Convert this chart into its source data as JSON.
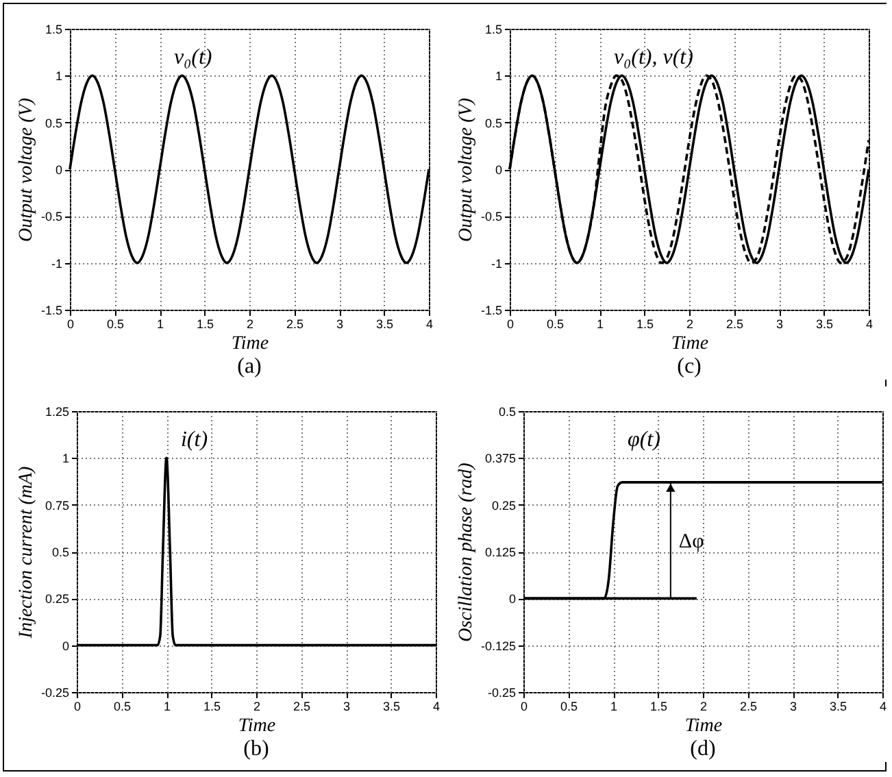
{
  "chart_data": [
    {
      "type": "line",
      "title": "(a)",
      "xlabel": "Time",
      "ylabel": "Output voltage (V)",
      "annotations": [
        "v₀(t)"
      ],
      "grid": true,
      "xlim": [
        0,
        4
      ],
      "xticks": [
        0,
        0.5,
        1,
        1.5,
        2,
        2.5,
        3,
        3.5,
        4
      ],
      "ylim": [
        -1.5,
        1.5
      ],
      "yticks": [
        -1.5,
        -1,
        -0.5,
        0,
        0.5,
        1,
        1.5
      ],
      "x": [
        0,
        0.0625,
        0.125,
        0.1875,
        0.25,
        0.3125,
        0.375,
        0.4375,
        0.5,
        0.5625,
        0.625,
        0.6875,
        0.75,
        0.8125,
        0.875,
        0.9375,
        1,
        1.0625,
        1.125,
        1.1875,
        1.25,
        1.3125,
        1.375,
        1.4375,
        1.5,
        1.5625,
        1.625,
        1.6875,
        1.75,
        1.8125,
        1.875,
        1.9375,
        2,
        2.0625,
        2.125,
        2.1875,
        2.25,
        2.3125,
        2.375,
        2.4375,
        2.5,
        2.5625,
        2.625,
        2.6875,
        2.75,
        2.8125,
        2.875,
        2.9375,
        3,
        3.0625,
        3.125,
        3.1875,
        3.25,
        3.3125,
        3.375,
        3.4375,
        3.5,
        3.5625,
        3.625,
        3.6875,
        3.75,
        3.8125,
        3.875,
        3.9375,
        4
      ],
      "series": [
        {
          "color": "#000000",
          "line_style": "solid",
          "values": [
            0,
            0.38,
            0.71,
            0.92,
            1,
            0.92,
            0.71,
            0.38,
            0,
            -0.38,
            -0.71,
            -0.92,
            -1,
            -0.92,
            -0.71,
            -0.38,
            0,
            0.38,
            0.71,
            0.92,
            1,
            0.92,
            0.71,
            0.38,
            0,
            -0.38,
            -0.71,
            -0.92,
            -1,
            -0.92,
            -0.71,
            -0.38,
            0,
            0.38,
            0.71,
            0.92,
            1,
            0.92,
            0.71,
            0.38,
            0,
            -0.38,
            -0.71,
            -0.92,
            -1,
            -0.92,
            -0.71,
            -0.38,
            0,
            0.38,
            0.71,
            0.92,
            1,
            0.92,
            0.71,
            0.38,
            0,
            -0.38,
            -0.71,
            -0.92,
            -1,
            -0.92,
            -0.71,
            -0.38,
            0
          ]
        }
      ]
    },
    {
      "type": "line",
      "title": "(c)",
      "xlabel": "Time",
      "ylabel": "Output voltage (V)",
      "annotations": [
        "v₀(t), v(t)"
      ],
      "grid": true,
      "xlim": [
        0,
        4
      ],
      "xticks": [
        0,
        0.5,
        1,
        1.5,
        2,
        2.5,
        3,
        3.5,
        4
      ],
      "ylim": [
        -1.5,
        1.5
      ],
      "yticks": [
        -1.5,
        -1,
        -0.5,
        0,
        0.5,
        1,
        1.5
      ],
      "x": [
        0,
        0.0625,
        0.125,
        0.1875,
        0.25,
        0.3125,
        0.375,
        0.4375,
        0.5,
        0.5625,
        0.625,
        0.6875,
        0.75,
        0.8125,
        0.875,
        0.9375,
        1,
        1.0625,
        1.125,
        1.1875,
        1.25,
        1.3125,
        1.375,
        1.4375,
        1.5,
        1.5625,
        1.625,
        1.6875,
        1.75,
        1.8125,
        1.875,
        1.9375,
        2,
        2.0625,
        2.125,
        2.1875,
        2.25,
        2.3125,
        2.375,
        2.4375,
        2.5,
        2.5625,
        2.625,
        2.6875,
        2.75,
        2.8125,
        2.875,
        2.9375,
        3,
        3.0625,
        3.125,
        3.1875,
        3.25,
        3.3125,
        3.375,
        3.4375,
        3.5,
        3.5625,
        3.625,
        3.6875,
        3.75,
        3.8125,
        3.875,
        3.9375,
        4
      ],
      "series": [
        {
          "color": "#000000",
          "line_style": "solid",
          "values": [
            0,
            0.38,
            0.71,
            0.92,
            1,
            0.92,
            0.71,
            0.38,
            0,
            -0.38,
            -0.71,
            -0.92,
            -1,
            -0.92,
            -0.71,
            -0.38,
            0,
            0.38,
            0.71,
            0.92,
            1,
            0.92,
            0.71,
            0.38,
            0,
            -0.38,
            -0.71,
            -0.92,
            -1,
            -0.92,
            -0.71,
            -0.38,
            0,
            0.38,
            0.71,
            0.92,
            1,
            0.92,
            0.71,
            0.38,
            0,
            -0.38,
            -0.71,
            -0.92,
            -1,
            -0.92,
            -0.71,
            -0.38,
            0,
            0.38,
            0.71,
            0.92,
            1,
            0.92,
            0.71,
            0.38,
            0,
            -0.38,
            -0.71,
            -0.92,
            -1,
            -0.92,
            -0.71,
            -0.38,
            0
          ]
        },
        {
          "color": "#000000",
          "line_style": "dashed",
          "values": [
            0,
            0.38,
            0.71,
            0.92,
            1,
            0.92,
            0.71,
            0.38,
            0,
            -0.38,
            -0.71,
            -0.92,
            -1,
            -0.92,
            -0.71,
            -0.38,
            0.15,
            0.65,
            0.89,
            1,
            0.95,
            0.76,
            0.45,
            0.08,
            -0.31,
            -0.65,
            -0.89,
            -1,
            -0.95,
            -0.76,
            -0.45,
            -0.08,
            0.31,
            0.65,
            0.89,
            1,
            0.95,
            0.76,
            0.45,
            0.08,
            -0.31,
            -0.65,
            -0.89,
            -1,
            -0.95,
            -0.76,
            -0.45,
            -0.08,
            0.31,
            0.65,
            0.89,
            1,
            0.95,
            0.76,
            0.45,
            0.08,
            -0.31,
            -0.65,
            -0.89,
            -1,
            -0.95,
            -0.76,
            -0.45,
            -0.08,
            0.31
          ]
        }
      ]
    },
    {
      "type": "line",
      "title": "(b)",
      "xlabel": "Time",
      "ylabel": "Injection current (mA)",
      "annotations": [
        "i(t)"
      ],
      "grid": true,
      "xlim": [
        0,
        4
      ],
      "xticks": [
        0,
        0.5,
        1,
        1.5,
        2,
        2.5,
        3,
        3.5,
        4
      ],
      "ylim": [
        -0.25,
        1.25
      ],
      "yticks": [
        -0.25,
        0,
        0.25,
        0.5,
        0.75,
        1,
        1.25
      ],
      "x": [
        0,
        0.9,
        0.93,
        0.96,
        1,
        1.04,
        1.07,
        1.1,
        4
      ],
      "series": [
        {
          "color": "#000000",
          "line_style": "solid",
          "values": [
            0,
            0,
            0.05,
            0.5,
            1,
            0.5,
            0.05,
            0,
            0
          ]
        }
      ]
    },
    {
      "type": "line",
      "title": "(d)",
      "xlabel": "Time",
      "ylabel": "Oscillation phase (rad)",
      "annotations": [
        "φ(t)",
        "Δφ"
      ],
      "grid": true,
      "xlim": [
        0,
        4
      ],
      "xticks": [
        0,
        0.5,
        1,
        1.5,
        2,
        2.5,
        3,
        3.5,
        4
      ],
      "ylim": [
        -0.25,
        0.5
      ],
      "yticks": [
        -0.25,
        -0.125,
        0,
        0.125,
        0.25,
        0.375,
        0.5
      ],
      "x": [
        0,
        0.9,
        0.95,
        1,
        1.05,
        1.1,
        4
      ],
      "series": [
        {
          "color": "#000000",
          "line_style": "solid",
          "values": [
            0,
            0,
            0.05,
            0.2,
            0.3,
            0.31,
            0.31
          ]
        },
        {
          "color": "#000000",
          "line_style": "solid",
          "x": [
            0,
            1.93
          ],
          "values": [
            0,
            0
          ]
        }
      ]
    }
  ]
}
